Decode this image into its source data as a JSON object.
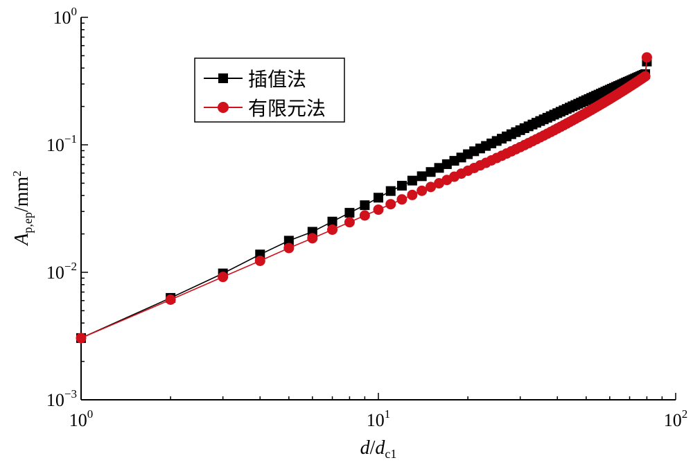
{
  "chart_data": {
    "type": "line",
    "xscale": "log",
    "yscale": "log",
    "xlim": [
      1,
      100
    ],
    "ylim": [
      0.001,
      1
    ],
    "x_ticks": [
      {
        "base": "10",
        "exp": "0"
      },
      {
        "base": "10",
        "exp": "1"
      },
      {
        "base": "10",
        "exp": "2"
      }
    ],
    "y_ticks": [
      {
        "base": "10",
        "exp": "0"
      },
      {
        "base": "10",
        "exp": "−1"
      },
      {
        "base": "10",
        "exp": "−2"
      },
      {
        "base": "10",
        "exp": "−3"
      }
    ],
    "xlabel": {
      "main": "d",
      "sep": "/",
      "main2": "d",
      "sub": "c1"
    },
    "ylabel": {
      "main": "A",
      "sub": "p,ep",
      "unit": "/mm",
      "sup": "2"
    },
    "grid": false,
    "legend_position": "upper-left",
    "series": [
      {
        "name": "插值法",
        "color": "#000000",
        "marker": "square",
        "points": [
          [
            1,
            0.00305
          ],
          [
            2,
            0.0063
          ],
          [
            3,
            0.0098
          ],
          [
            4,
            0.0138
          ],
          [
            5,
            0.0177
          ],
          [
            6,
            0.0208
          ],
          [
            7,
            0.025
          ],
          [
            8,
            0.0293
          ],
          [
            9,
            0.0336
          ],
          [
            10,
            0.0385
          ],
          [
            11,
            0.0434
          ],
          [
            12,
            0.0478
          ],
          [
            13,
            0.0524
          ],
          [
            14,
            0.0567
          ],
          [
            15,
            0.0612
          ],
          [
            16,
            0.0659
          ],
          [
            17,
            0.0705
          ],
          [
            18,
            0.0749
          ],
          [
            19,
            0.0795
          ],
          [
            20,
            0.0844
          ],
          [
            21,
            0.089
          ],
          [
            22,
            0.0936
          ],
          [
            23,
            0.098
          ],
          [
            24,
            0.1025
          ],
          [
            25,
            0.1072
          ],
          [
            26,
            0.1117
          ],
          [
            27,
            0.1164
          ],
          [
            28,
            0.1211
          ],
          [
            29,
            0.1257
          ],
          [
            30,
            0.1303
          ],
          [
            31,
            0.135
          ],
          [
            32,
            0.1396
          ],
          [
            33,
            0.1443
          ],
          [
            34,
            0.149
          ],
          [
            35,
            0.1537
          ],
          [
            36,
            0.1584
          ],
          [
            37,
            0.1631
          ],
          [
            38,
            0.1678
          ],
          [
            39,
            0.1725
          ],
          [
            40,
            0.1772
          ],
          [
            41,
            0.1818
          ],
          [
            42,
            0.1865
          ],
          [
            43,
            0.1912
          ],
          [
            44,
            0.1959
          ],
          [
            45,
            0.2006
          ],
          [
            46,
            0.2052
          ],
          [
            47,
            0.2099
          ],
          [
            48,
            0.2146
          ],
          [
            49,
            0.2193
          ],
          [
            50,
            0.224
          ],
          [
            51,
            0.2287
          ],
          [
            52,
            0.2334
          ],
          [
            53,
            0.238
          ],
          [
            54,
            0.2427
          ],
          [
            55,
            0.2473
          ],
          [
            56,
            0.252
          ],
          [
            57,
            0.2567
          ],
          [
            58,
            0.2614
          ],
          [
            59,
            0.2661
          ],
          [
            60,
            0.2707
          ],
          [
            61,
            0.2754
          ],
          [
            62,
            0.28
          ],
          [
            63,
            0.2847
          ],
          [
            64,
            0.2893
          ],
          [
            65,
            0.294
          ],
          [
            66,
            0.2986
          ],
          [
            67,
            0.3032
          ],
          [
            68,
            0.3079
          ],
          [
            69,
            0.3125
          ],
          [
            70,
            0.3171
          ],
          [
            71,
            0.3218
          ],
          [
            72,
            0.3264
          ],
          [
            73,
            0.331
          ],
          [
            74,
            0.3356
          ],
          [
            75,
            0.3402
          ],
          [
            76,
            0.3448
          ],
          [
            77,
            0.3495
          ],
          [
            78,
            0.3541
          ],
          [
            79,
            0.3587
          ],
          [
            80,
            0.45
          ]
        ]
      },
      {
        "name": "有限元法",
        "color": "#d0101b",
        "marker": "circle",
        "points": [
          [
            1,
            0.00305
          ],
          [
            2,
            0.0061
          ],
          [
            3,
            0.0092
          ],
          [
            4,
            0.0123
          ],
          [
            5,
            0.0155
          ],
          [
            6,
            0.0185
          ],
          [
            7,
            0.0216
          ],
          [
            8,
            0.0247
          ],
          [
            9,
            0.0279
          ],
          [
            10,
            0.031
          ],
          [
            11,
            0.0342
          ],
          [
            12,
            0.0373
          ],
          [
            13,
            0.0404
          ],
          [
            14,
            0.0436
          ],
          [
            15,
            0.0467
          ],
          [
            16,
            0.0499
          ],
          [
            17,
            0.053
          ],
          [
            18,
            0.0562
          ],
          [
            19,
            0.0594
          ],
          [
            20,
            0.0626
          ],
          [
            21,
            0.0658
          ],
          [
            22,
            0.069
          ],
          [
            23,
            0.0722
          ],
          [
            24,
            0.0755
          ],
          [
            25,
            0.0788
          ],
          [
            26,
            0.0821
          ],
          [
            27,
            0.0855
          ],
          [
            28,
            0.0889
          ],
          [
            29,
            0.0924
          ],
          [
            30,
            0.0959
          ],
          [
            31,
            0.0995
          ],
          [
            32,
            0.1031
          ],
          [
            33,
            0.1068
          ],
          [
            34,
            0.1106
          ],
          [
            35,
            0.1144
          ],
          [
            36,
            0.1183
          ],
          [
            37,
            0.1222
          ],
          [
            38,
            0.1262
          ],
          [
            39,
            0.1302
          ],
          [
            40,
            0.1343
          ],
          [
            41,
            0.1384
          ],
          [
            42,
            0.1426
          ],
          [
            43,
            0.1469
          ],
          [
            44,
            0.1512
          ],
          [
            45,
            0.1556
          ],
          [
            46,
            0.16
          ],
          [
            47,
            0.1645
          ],
          [
            48,
            0.169
          ],
          [
            49,
            0.1736
          ],
          [
            50,
            0.1783
          ],
          [
            51,
            0.183
          ],
          [
            52,
            0.1878
          ],
          [
            53,
            0.1927
          ],
          [
            54,
            0.1976
          ],
          [
            55,
            0.2026
          ],
          [
            56,
            0.2077
          ],
          [
            57,
            0.2128
          ],
          [
            58,
            0.218
          ],
          [
            59,
            0.2233
          ],
          [
            60,
            0.2286
          ],
          [
            61,
            0.234
          ],
          [
            62,
            0.2395
          ],
          [
            63,
            0.2451
          ],
          [
            64,
            0.2507
          ],
          [
            65,
            0.2564
          ],
          [
            66,
            0.2622
          ],
          [
            67,
            0.2681
          ],
          [
            68,
            0.274
          ],
          [
            69,
            0.28
          ],
          [
            70,
            0.2861
          ],
          [
            71,
            0.2923
          ],
          [
            72,
            0.2986
          ],
          [
            73,
            0.3049
          ],
          [
            74,
            0.3113
          ],
          [
            75,
            0.3178
          ],
          [
            76,
            0.3244
          ],
          [
            77,
            0.3311
          ],
          [
            78,
            0.3379
          ],
          [
            79,
            0.3447
          ],
          [
            80,
            0.485
          ]
        ]
      }
    ]
  }
}
